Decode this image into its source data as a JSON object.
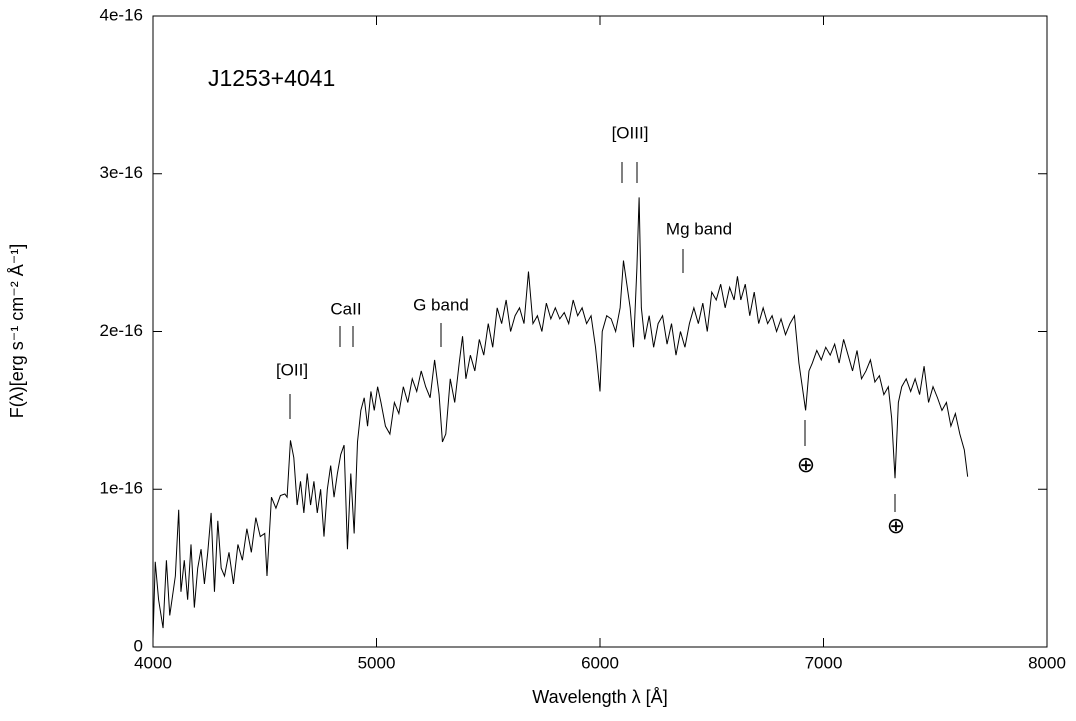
{
  "chart_data": {
    "type": "line",
    "title": "J1253+4041",
    "x_label": "Wavelength λ [Å]",
    "y_label": "F(λ)[erg s⁻¹ cm⁻² Å⁻¹]",
    "xlim": [
      4000,
      8000
    ],
    "xticks": [
      4000,
      5000,
      6000,
      7000,
      8000
    ],
    "ylim": [
      0,
      4e-16
    ],
    "yticks": [
      0,
      1e-16,
      2e-16,
      3e-16,
      4e-16
    ],
    "grid": false,
    "color": "#000000",
    "annotations": [
      "[OII]",
      "CaII",
      "G band",
      "[OIII]",
      "Mg band",
      "⊕",
      "⊕"
    ],
    "x": [
      4000,
      4010,
      4025,
      4045,
      4060,
      4075,
      4100,
      4115,
      4125,
      4140,
      4155,
      4170,
      4185,
      4200,
      4215,
      4230,
      4245,
      4260,
      4275,
      4290,
      4305,
      4320,
      4340,
      4360,
      4380,
      4400,
      4420,
      4440,
      4460,
      4480,
      4500,
      4510,
      4530,
      4550,
      4570,
      4590,
      4600,
      4615,
      4630,
      4645,
      4660,
      4675,
      4690,
      4705,
      4720,
      4735,
      4750,
      4765,
      4780,
      4795,
      4810,
      4825,
      4840,
      4855,
      4870,
      4885,
      4900,
      4915,
      4930,
      4945,
      4960,
      4975,
      4990,
      5005,
      5020,
      5040,
      5060,
      5080,
      5100,
      5120,
      5140,
      5160,
      5180,
      5200,
      5220,
      5240,
      5260,
      5280,
      5295,
      5310,
      5330,
      5350,
      5370,
      5385,
      5400,
      5420,
      5440,
      5460,
      5480,
      5500,
      5520,
      5540,
      5560,
      5580,
      5600,
      5620,
      5640,
      5660,
      5680,
      5700,
      5720,
      5740,
      5760,
      5780,
      5800,
      5820,
      5840,
      5860,
      5880,
      5900,
      5920,
      5940,
      5960,
      5980,
      6000,
      6010,
      6030,
      6050,
      6070,
      6090,
      6105,
      6120,
      6135,
      6150,
      6165,
      6175,
      6185,
      6200,
      6220,
      6240,
      6260,
      6280,
      6300,
      6320,
      6340,
      6360,
      6380,
      6400,
      6420,
      6440,
      6460,
      6480,
      6500,
      6520,
      6540,
      6560,
      6580,
      6600,
      6615,
      6630,
      6650,
      6670,
      6690,
      6710,
      6730,
      6750,
      6770,
      6790,
      6810,
      6830,
      6850,
      6870,
      6890,
      6905,
      6920,
      6935,
      6950,
      6970,
      6990,
      7010,
      7030,
      7050,
      7070,
      7090,
      7110,
      7130,
      7150,
      7170,
      7190,
      7210,
      7230,
      7250,
      7270,
      7290,
      7305,
      7320,
      7335,
      7350,
      7370,
      7390,
      7410,
      7430,
      7450,
      7470,
      7490,
      7510,
      7530,
      7550,
      7570,
      7590,
      7610,
      7630,
      7645
    ],
    "values": [
      5e-18,
      5.4e-17,
      3e-17,
      1.2e-17,
      5.5e-17,
      2e-17,
      4.5e-17,
      8.7e-17,
      3.5e-17,
      5.5e-17,
      3e-17,
      6.5e-17,
      2.5e-17,
      5e-17,
      6.2e-17,
      4e-17,
      6e-17,
      8.5e-17,
      3.5e-17,
      8e-17,
      5e-17,
      4.5e-17,
      6e-17,
      4e-17,
      6.5e-17,
      5.5e-17,
      7.5e-17,
      6e-17,
      8.2e-17,
      7e-17,
      7.2e-17,
      4.5e-17,
      9.5e-17,
      8.8e-17,
      9.6e-17,
      9.7e-17,
      9.5e-17,
      1.31e-16,
      1.2e-16,
      9e-17,
      1.05e-16,
      8.5e-17,
      1.1e-16,
      9e-17,
      1.05e-16,
      8.5e-17,
      1e-16,
      7e-17,
      1e-16,
      1.15e-16,
      9.5e-17,
      1.1e-16,
      1.22e-16,
      1.28e-16,
      6.2e-17,
      1.1e-16,
      7.2e-17,
      1.3e-16,
      1.5e-16,
      1.58e-16,
      1.4e-16,
      1.62e-16,
      1.5e-16,
      1.65e-16,
      1.55e-16,
      1.4e-16,
      1.35e-16,
      1.55e-16,
      1.48e-16,
      1.65e-16,
      1.55e-16,
      1.7e-16,
      1.62e-16,
      1.75e-16,
      1.65e-16,
      1.58e-16,
      1.82e-16,
      1.6e-16,
      1.3e-16,
      1.35e-16,
      1.7e-16,
      1.55e-16,
      1.8e-16,
      1.97e-16,
      1.7e-16,
      1.85e-16,
      1.75e-16,
      1.95e-16,
      1.85e-16,
      2.05e-16,
      1.9e-16,
      2.15e-16,
      2.05e-16,
      2.2e-16,
      2e-16,
      2.1e-16,
      2.15e-16,
      2.05e-16,
      2.38e-16,
      2.05e-16,
      2.1e-16,
      2e-16,
      2.18e-16,
      2.08e-16,
      2.15e-16,
      2.08e-16,
      2.12e-16,
      2.05e-16,
      2.2e-16,
      2.1e-16,
      2.15e-16,
      2.05e-16,
      2.1e-16,
      1.9e-16,
      1.62e-16,
      2e-16,
      2.1e-16,
      2.08e-16,
      2e-16,
      2.15e-16,
      2.45e-16,
      2.3e-16,
      2.15e-16,
      1.9e-16,
      2.4e-16,
      2.85e-16,
      2.15e-16,
      1.95e-16,
      2.1e-16,
      1.9e-16,
      2.05e-16,
      2.1e-16,
      1.92e-16,
      2.05e-16,
      1.85e-16,
      2e-16,
      1.9e-16,
      2.05e-16,
      2.15e-16,
      2.05e-16,
      2.18e-16,
      2e-16,
      2.25e-16,
      2.2e-16,
      2.3e-16,
      2.15e-16,
      2.28e-16,
      2.2e-16,
      2.35e-16,
      2.2e-16,
      2.3e-16,
      2.1e-16,
      2.25e-16,
      2.05e-16,
      2.15e-16,
      2.05e-16,
      2.1e-16,
      2e-16,
      2.08e-16,
      1.98e-16,
      2.05e-16,
      2.1e-16,
      1.8e-16,
      1.65e-16,
      1.5e-16,
      1.75e-16,
      1.8e-16,
      1.88e-16,
      1.82e-16,
      1.9e-16,
      1.85e-16,
      1.92e-16,
      1.8e-16,
      1.95e-16,
      1.85e-16,
      1.75e-16,
      1.88e-16,
      1.7e-16,
      1.75e-16,
      1.82e-16,
      1.68e-16,
      1.72e-16,
      1.6e-16,
      1.65e-16,
      1.45e-16,
      1.07e-16,
      1.55e-16,
      1.65e-16,
      1.7e-16,
      1.62e-16,
      1.7e-16,
      1.6e-16,
      1.78e-16,
      1.55e-16,
      1.65e-16,
      1.58e-16,
      1.5e-16,
      1.55e-16,
      1.4e-16,
      1.48e-16,
      1.35e-16,
      1.25e-16,
      1.08e-16
    ]
  }
}
